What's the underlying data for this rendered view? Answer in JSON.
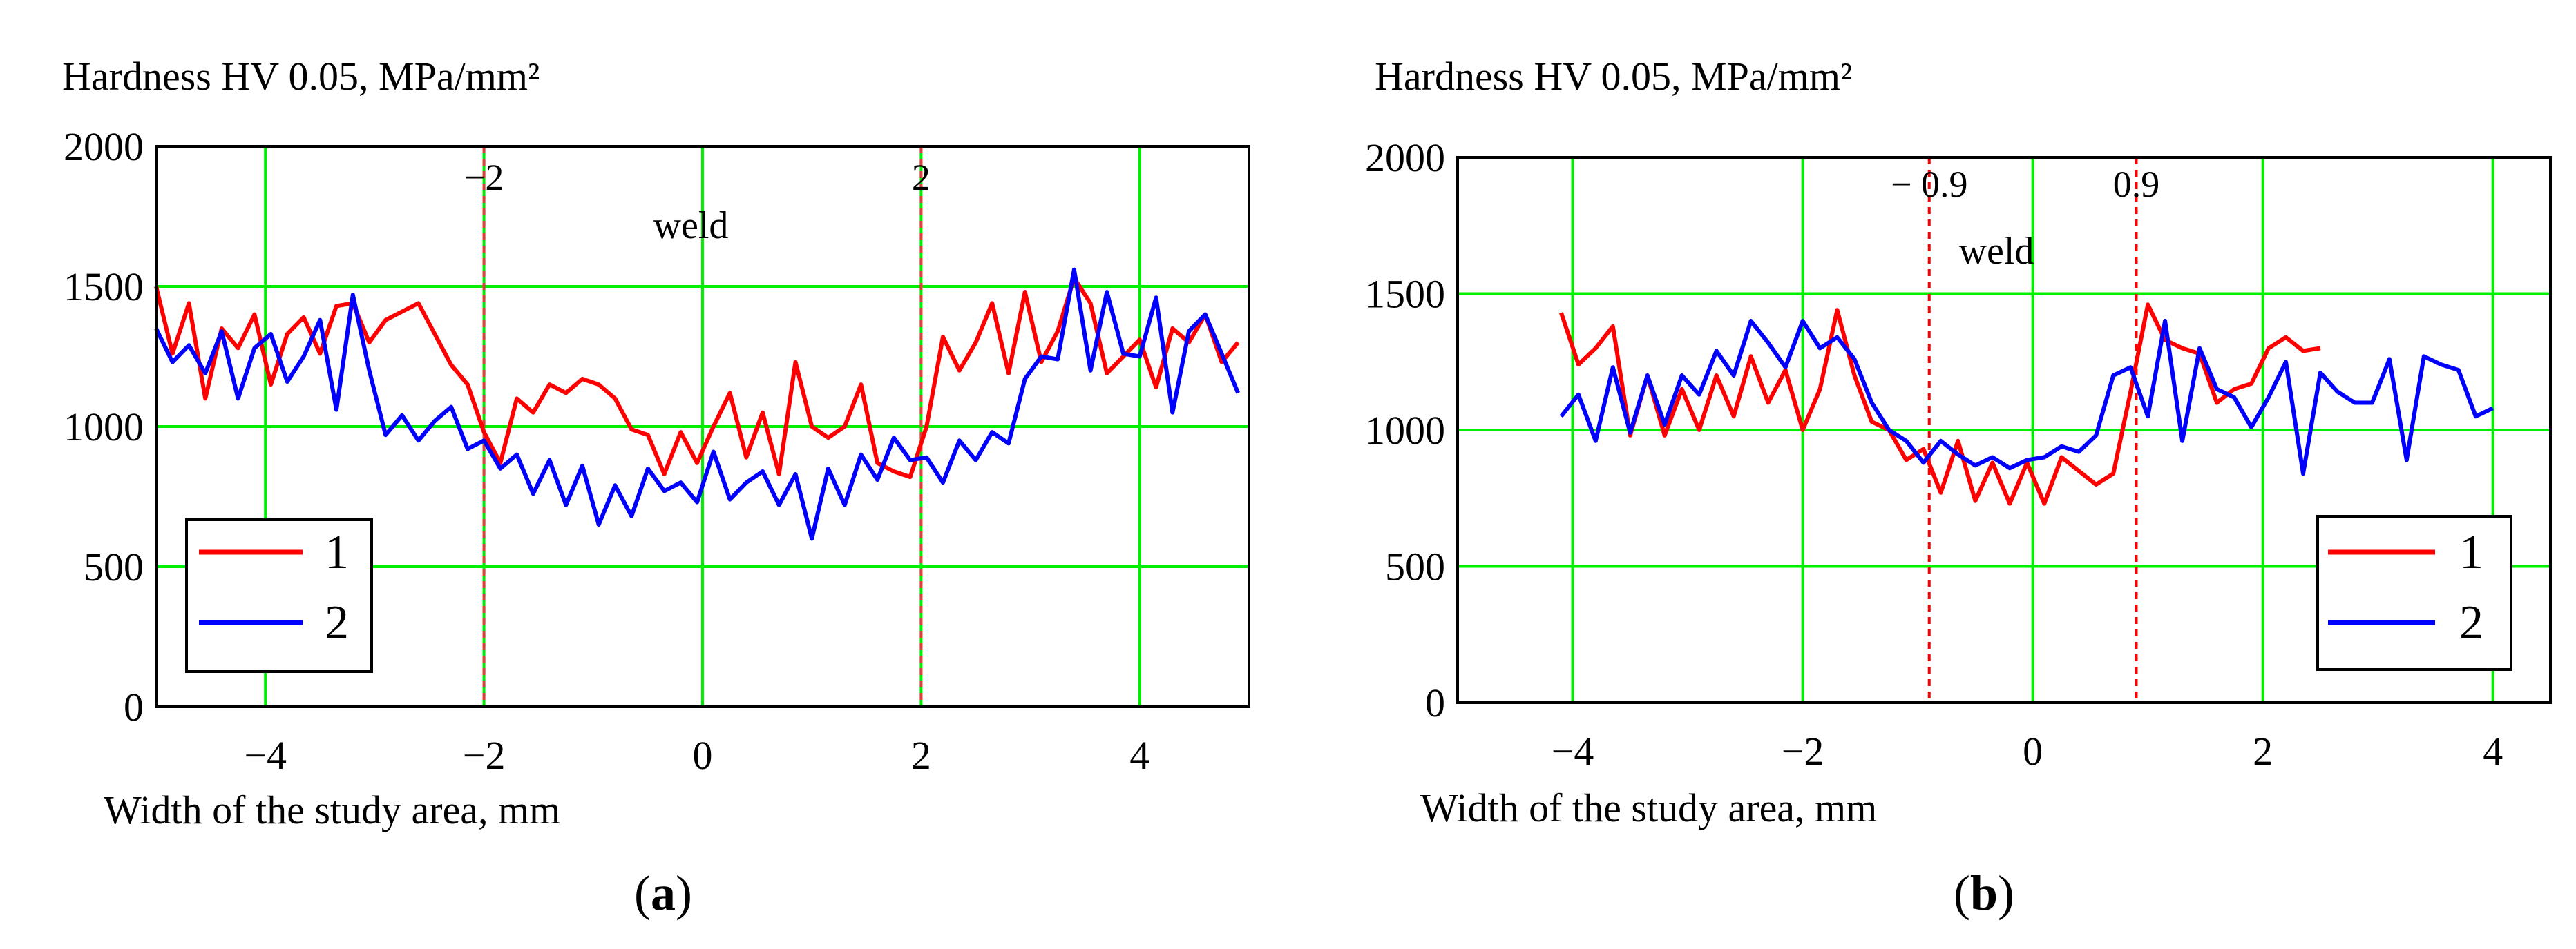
{
  "colors": {
    "series_1": "#ff0000",
    "series_2": "#0000ff",
    "grid": "#00ee00",
    "axes": "#000000",
    "markers_a": "#e04040",
    "markers_b": "#ff0000"
  },
  "chart_data": [
    {
      "type": "line",
      "panel_label": "a",
      "ylabel": "Hardness HV 0.05, MPa/mm²",
      "xlabel": "Width of the study area, mm",
      "xlim": [
        -5,
        5
      ],
      "ylim": [
        0,
        2000
      ],
      "xticks": [
        -4,
        -2,
        0,
        2,
        4
      ],
      "xtick_labels": [
        "−4",
        "−2",
        "0",
        "2",
        "4"
      ],
      "yticks": [
        0,
        500,
        1000,
        1500,
        2000
      ],
      "ytick_labels": [
        "0",
        "500",
        "1000",
        "1500",
        "2000"
      ],
      "grid": true,
      "legend_position": "bottom-left",
      "vlines": [
        {
          "x": -2,
          "label": "−2"
        },
        {
          "x": 2,
          "label": "2"
        }
      ],
      "annotation": {
        "text": "weld",
        "x": -0.1,
        "y": 1710
      },
      "series": [
        {
          "name": "1",
          "x": [
            -5.0,
            -4.85,
            -4.7,
            -4.55,
            -4.4,
            -4.25,
            -4.1,
            -3.95,
            -3.8,
            -3.65,
            -3.5,
            -3.35,
            -3.2,
            -3.05,
            -2.9,
            -2.75,
            -2.6,
            -2.45,
            -2.3,
            -2.15,
            -2.0,
            -1.85,
            -1.7,
            -1.55,
            -1.4,
            -1.25,
            -1.1,
            -0.95,
            -0.8,
            -0.65,
            -0.5,
            -0.35,
            -0.2,
            -0.05,
            0.1,
            0.25,
            0.4,
            0.55,
            0.7,
            0.85,
            1.0,
            1.15,
            1.3,
            1.45,
            1.6,
            1.75,
            1.9,
            2.05,
            2.2,
            2.35,
            2.5,
            2.65,
            2.8,
            2.95,
            3.1,
            3.25,
            3.4,
            3.55,
            3.7,
            3.85,
            4.0,
            4.15,
            4.3,
            4.45,
            4.6,
            4.75,
            4.9
          ],
          "y": [
            1500,
            1260,
            1440,
            1100,
            1350,
            1280,
            1400,
            1150,
            1330,
            1390,
            1260,
            1430,
            1440,
            1300,
            1380,
            1410,
            1440,
            1330,
            1220,
            1150,
            980,
            870,
            1100,
            1050,
            1150,
            1120,
            1170,
            1150,
            1100,
            990,
            970,
            830,
            980,
            870,
            1000,
            1120,
            890,
            1050,
            830,
            1230,
            1000,
            960,
            1000,
            1150,
            870,
            840,
            820,
            1000,
            1320,
            1200,
            1300,
            1440,
            1190,
            1480,
            1230,
            1340,
            1530,
            1440,
            1190,
            1250,
            1310,
            1140,
            1350,
            1300,
            1400,
            1230,
            1300
          ]
        },
        {
          "name": "2",
          "x": [
            -5.0,
            -4.85,
            -4.7,
            -4.55,
            -4.4,
            -4.25,
            -4.1,
            -3.95,
            -3.8,
            -3.65,
            -3.5,
            -3.35,
            -3.2,
            -3.05,
            -2.9,
            -2.75,
            -2.6,
            -2.45,
            -2.3,
            -2.15,
            -2.0,
            -1.85,
            -1.7,
            -1.55,
            -1.4,
            -1.25,
            -1.1,
            -0.95,
            -0.8,
            -0.65,
            -0.5,
            -0.35,
            -0.2,
            -0.05,
            0.1,
            0.25,
            0.4,
            0.55,
            0.7,
            0.85,
            1.0,
            1.15,
            1.3,
            1.45,
            1.6,
            1.75,
            1.9,
            2.05,
            2.2,
            2.35,
            2.5,
            2.65,
            2.8,
            2.95,
            3.1,
            3.25,
            3.4,
            3.55,
            3.7,
            3.85,
            4.0,
            4.15,
            4.3,
            4.45,
            4.6,
            4.75,
            4.9
          ],
          "y": [
            1350,
            1230,
            1290,
            1190,
            1340,
            1100,
            1280,
            1330,
            1160,
            1250,
            1380,
            1060,
            1470,
            1200,
            970,
            1040,
            950,
            1020,
            1070,
            920,
            950,
            850,
            900,
            760,
            880,
            720,
            860,
            650,
            790,
            680,
            850,
            770,
            800,
            730,
            910,
            740,
            800,
            840,
            720,
            830,
            600,
            850,
            720,
            900,
            810,
            960,
            880,
            890,
            800,
            950,
            880,
            980,
            940,
            1170,
            1250,
            1240,
            1560,
            1200,
            1480,
            1260,
            1250,
            1460,
            1050,
            1340,
            1400,
            1260,
            1120
          ]
        }
      ]
    },
    {
      "type": "line",
      "panel_label": "b",
      "ylabel": "Hardness HV 0.05, MPa/mm²",
      "xlabel": "Width of the study area, mm",
      "xlim": [
        -5,
        4.5
      ],
      "ylim": [
        0,
        2000
      ],
      "xticks": [
        -4,
        -2,
        0,
        2,
        4
      ],
      "xtick_labels": [
        "−4",
        "−2",
        "0",
        "2",
        "4"
      ],
      "yticks": [
        0,
        500,
        1000,
        1500,
        2000
      ],
      "ytick_labels": [
        "0",
        "500",
        "1000",
        "1500",
        "2000"
      ],
      "grid": true,
      "legend_position": "bottom-right",
      "vlines": [
        {
          "x": -0.9,
          "label": "− 0.9"
        },
        {
          "x": 0.9,
          "label": "0.9"
        }
      ],
      "annotation": {
        "text": "weld",
        "x": 0.0,
        "y": 1640
      },
      "series": [
        {
          "name": "1",
          "x": [
            -4.1,
            -3.95,
            -3.8,
            -3.65,
            -3.5,
            -3.35,
            -3.2,
            -3.05,
            -2.9,
            -2.75,
            -2.6,
            -2.45,
            -2.3,
            -2.15,
            -2.0,
            -1.85,
            -1.7,
            -1.55,
            -1.4,
            -1.25,
            -1.1,
            -0.95,
            -0.8,
            -0.65,
            -0.5,
            -0.35,
            -0.2,
            -0.05,
            0.1,
            0.25,
            0.4,
            0.55,
            0.7,
            0.85,
            1.0,
            1.15,
            1.3,
            1.45,
            1.6,
            1.75,
            1.9,
            2.05,
            2.2,
            2.35,
            2.5
          ],
          "y": [
            1430,
            1240,
            1300,
            1380,
            980,
            1200,
            980,
            1150,
            1000,
            1200,
            1050,
            1270,
            1100,
            1220,
            1000,
            1150,
            1440,
            1200,
            1030,
            1000,
            890,
            930,
            770,
            960,
            740,
            880,
            730,
            880,
            730,
            900,
            850,
            800,
            840,
            1140,
            1460,
            1330,
            1300,
            1280,
            1100,
            1150,
            1170,
            1300,
            1340,
            1290,
            1300
          ]
        },
        {
          "name": "2",
          "x": [
            -4.1,
            -3.95,
            -3.8,
            -3.65,
            -3.5,
            -3.35,
            -3.2,
            -3.05,
            -2.9,
            -2.75,
            -2.6,
            -2.45,
            -2.3,
            -2.15,
            -2.0,
            -1.85,
            -1.7,
            -1.55,
            -1.4,
            -1.25,
            -1.1,
            -0.95,
            -0.8,
            -0.65,
            -0.5,
            -0.35,
            -0.2,
            -0.05,
            0.1,
            0.25,
            0.4,
            0.55,
            0.7,
            0.85,
            1.0,
            1.15,
            1.3,
            1.45,
            1.6,
            1.75,
            1.9,
            2.05,
            2.2,
            2.35,
            2.5,
            2.65,
            2.8,
            2.95,
            3.1,
            3.25,
            3.4,
            3.55,
            3.7,
            3.85,
            4.0
          ],
          "y": [
            1050,
            1130,
            960,
            1230,
            990,
            1200,
            1020,
            1200,
            1130,
            1290,
            1200,
            1400,
            1320,
            1230,
            1400,
            1300,
            1340,
            1260,
            1100,
            1000,
            960,
            880,
            960,
            910,
            870,
            900,
            860,
            890,
            900,
            940,
            920,
            980,
            1200,
            1230,
            1050,
            1400,
            960,
            1300,
            1150,
            1120,
            1010,
            1120,
            1250,
            840,
            1210,
            1140,
            1100,
            1100,
            1260,
            890,
            1270,
            1240,
            1220,
            1050,
            1080
          ]
        }
      ]
    }
  ]
}
